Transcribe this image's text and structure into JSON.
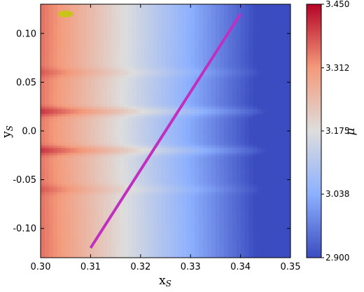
{
  "chart_data": {
    "type": "heatmap",
    "title": "",
    "xlabel": "x",
    "xlabel_sub": "S",
    "ylabel": "y",
    "ylabel_sub": "S",
    "xlim": [
      0.3,
      0.35
    ],
    "ylim": [
      -0.13,
      0.13
    ],
    "x_ticks": [
      {
        "value": 0.3,
        "label": "0.30"
      },
      {
        "value": 0.31,
        "label": "0.31"
      },
      {
        "value": 0.32,
        "label": "0.32"
      },
      {
        "value": 0.33,
        "label": "0.33"
      },
      {
        "value": 0.34,
        "label": "0.34"
      },
      {
        "value": 0.35,
        "label": "0.35"
      }
    ],
    "y_ticks": [
      {
        "value": 0.1,
        "label": "0.10"
      },
      {
        "value": 0.05,
        "label": "0.05"
      },
      {
        "value": 0.0,
        "label": "0.0"
      },
      {
        "value": -0.05,
        "label": "-0.05"
      },
      {
        "value": -0.1,
        "label": "-0.10"
      }
    ],
    "colorbar": {
      "label": "μ",
      "range": [
        2.9,
        3.45
      ],
      "ticks": [
        {
          "value": 3.45,
          "label": "3.450"
        },
        {
          "value": 3.312,
          "label": "3.312"
        },
        {
          "value": 3.175,
          "label": "3.175"
        },
        {
          "value": 3.038,
          "label": "3.038"
        },
        {
          "value": 2.9,
          "label": "2.900"
        }
      ],
      "colormap": "coolwarm"
    },
    "line": {
      "x": [
        0.31,
        0.34
      ],
      "y": [
        -0.12,
        0.12
      ],
      "color": "#c030c0"
    },
    "ellipse": {
      "cx": 0.305,
      "cy": 0.12,
      "rx": 0.0015,
      "ry": 0.0035,
      "color": "#c8c41a"
    },
    "horizontal_bands": [
      0.06,
      0.02,
      -0.02,
      -0.06
    ],
    "grid": false
  }
}
